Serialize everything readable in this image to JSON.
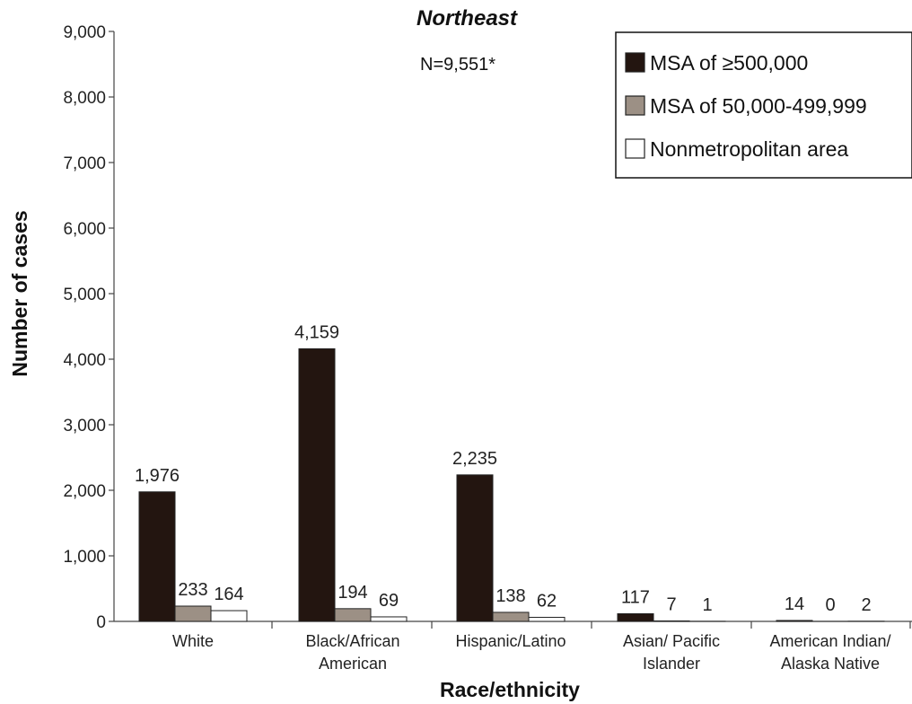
{
  "chart_data": {
    "type": "bar",
    "title": "Northeast",
    "subtitle": "N=9,551*",
    "xlabel": "Race/ethnicity",
    "ylabel": "Number of cases",
    "ylim": [
      0,
      9000
    ],
    "yticks": [
      0,
      1000,
      2000,
      3000,
      4000,
      5000,
      6000,
      7000,
      8000,
      9000
    ],
    "ytick_labels": [
      "0",
      "1,000",
      "2,000",
      "3,000",
      "4,000",
      "5,000",
      "6,000",
      "7,000",
      "8,000",
      "9,000"
    ],
    "categories": [
      [
        "White"
      ],
      [
        "Black/African",
        "American"
      ],
      [
        "Hispanic/Latino"
      ],
      [
        "Asian/ Pacific",
        "Islander"
      ],
      [
        "American Indian/",
        "Alaska Native"
      ]
    ],
    "series": [
      {
        "name": "MSA of ≥500,000",
        "color": "#231510",
        "values": [
          1976,
          4159,
          2235,
          117,
          14
        ],
        "labels": [
          "1,976",
          "4,159",
          "2,235",
          "117",
          "14"
        ]
      },
      {
        "name": "MSA of 50,000-499,999",
        "color": "#9c9085",
        "values": [
          233,
          194,
          138,
          7,
          0
        ],
        "labels": [
          "233",
          "194",
          "138",
          "7",
          "0"
        ]
      },
      {
        "name": "Nonmetropolitan area",
        "color": "#ffffff",
        "values": [
          164,
          69,
          62,
          1,
          2
        ],
        "labels": [
          "164",
          "69",
          "62",
          "1",
          "2"
        ]
      }
    ],
    "legend_position": "top-right",
    "grid": false
  }
}
